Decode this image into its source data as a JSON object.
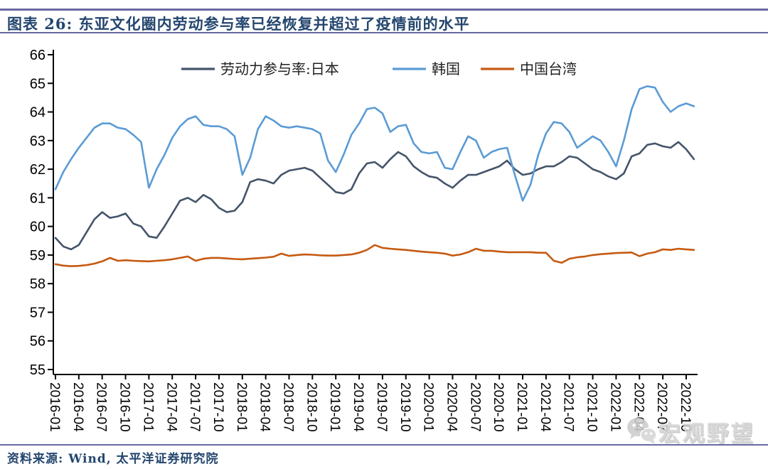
{
  "header": {
    "title": "图表 26:  东亚文化圈内劳动参与率已经恢复并超过了疫情前的水平"
  },
  "footer": {
    "source_label": "资料来源: Wind, 太平洋证券研究院"
  },
  "watermark": {
    "text": "宏观野望",
    "icon": "wechat-logo-icon"
  },
  "colors": {
    "japan_line": "#44546A",
    "korea_line": "#5B9BD5",
    "taiwan_line": "#C55A11",
    "rule": "#6869A2",
    "title_text": "#24466E",
    "axis": "#000000"
  },
  "chart_data": {
    "type": "line",
    "title": "东亚文化圈内劳动参与率已经恢复并超过了疫情前的水平",
    "xlabel": "",
    "ylabel": "",
    "ylim": [
      55,
      66
    ],
    "y_ticks": [
      55,
      56,
      57,
      58,
      59,
      60,
      61,
      62,
      63,
      64,
      65,
      66
    ],
    "grid": false,
    "legend_position": "top",
    "x_frequency": "monthly",
    "x_months": [
      "2016-01",
      "2016-02",
      "2016-03",
      "2016-04",
      "2016-05",
      "2016-06",
      "2016-07",
      "2016-08",
      "2016-09",
      "2016-10",
      "2016-11",
      "2016-12",
      "2017-01",
      "2017-02",
      "2017-03",
      "2017-04",
      "2017-05",
      "2017-06",
      "2017-07",
      "2017-08",
      "2017-09",
      "2017-10",
      "2017-11",
      "2017-12",
      "2018-01",
      "2018-02",
      "2018-03",
      "2018-04",
      "2018-05",
      "2018-06",
      "2018-07",
      "2018-08",
      "2018-09",
      "2018-10",
      "2018-11",
      "2018-12",
      "2019-01",
      "2019-02",
      "2019-03",
      "2019-04",
      "2019-05",
      "2019-06",
      "2019-07",
      "2019-08",
      "2019-09",
      "2019-10",
      "2019-11",
      "2019-12",
      "2020-01",
      "2020-02",
      "2020-03",
      "2020-04",
      "2020-05",
      "2020-06",
      "2020-07",
      "2020-08",
      "2020-09",
      "2020-10",
      "2020-11",
      "2020-12",
      "2021-01",
      "2021-02",
      "2021-03",
      "2021-04",
      "2021-05",
      "2021-06",
      "2021-07",
      "2021-08",
      "2021-09",
      "2021-10",
      "2021-11",
      "2021-12",
      "2022-01",
      "2022-02",
      "2022-03",
      "2022-04",
      "2022-05",
      "2022-06",
      "2022-07",
      "2022-08",
      "2022-09",
      "2022-10",
      "2022-11"
    ],
    "x_tick_labels": [
      "2016-01",
      "2016-04",
      "2016-07",
      "2016-10",
      "2017-01",
      "2017-04",
      "2017-07",
      "2017-10",
      "2018-01",
      "2018-04",
      "2018-07",
      "2018-10",
      "2019-01",
      "2019-04",
      "2019-07",
      "2019-10",
      "2020-01",
      "2020-04",
      "2020-07",
      "2020-10",
      "2021-01",
      "2021-04",
      "2021-07",
      "2021-10",
      "2022-01",
      "2022-04",
      "2022-07",
      "2022-10"
    ],
    "series": [
      {
        "name": "劳动力参与率:日本",
        "color": "#44546A",
        "values": [
          59.6,
          59.3,
          59.2,
          59.35,
          59.8,
          60.25,
          60.5,
          60.3,
          60.35,
          60.45,
          60.1,
          60.0,
          59.65,
          59.6,
          60.0,
          60.45,
          60.9,
          61.0,
          60.85,
          61.1,
          60.95,
          60.65,
          60.5,
          60.55,
          60.85,
          61.55,
          61.65,
          61.6,
          61.5,
          61.8,
          61.95,
          62.0,
          62.05,
          61.95,
          61.7,
          61.45,
          61.2,
          61.15,
          61.3,
          61.85,
          62.2,
          62.25,
          62.05,
          62.35,
          62.6,
          62.45,
          62.1,
          61.9,
          61.75,
          61.7,
          61.5,
          61.35,
          61.6,
          61.8,
          61.8,
          61.9,
          62.0,
          62.1,
          62.3,
          62.0,
          61.8,
          61.85,
          62.0,
          62.1,
          62.1,
          62.25,
          62.45,
          62.4,
          62.2,
          62.0,
          61.9,
          61.75,
          61.65,
          61.85,
          62.45,
          62.55,
          62.85,
          62.9,
          62.8,
          62.75,
          62.95,
          62.7,
          62.35
        ]
      },
      {
        "name": "韩国",
        "color": "#5B9BD5",
        "values": [
          61.3,
          61.9,
          62.35,
          62.75,
          63.1,
          63.45,
          63.6,
          63.6,
          63.45,
          63.4,
          63.2,
          62.95,
          61.35,
          62.0,
          62.5,
          63.1,
          63.5,
          63.75,
          63.85,
          63.55,
          63.5,
          63.5,
          63.4,
          63.15,
          61.8,
          62.4,
          63.4,
          63.85,
          63.7,
          63.5,
          63.45,
          63.5,
          63.45,
          63.4,
          63.25,
          62.3,
          61.9,
          62.5,
          63.2,
          63.6,
          64.1,
          64.15,
          63.95,
          63.3,
          63.5,
          63.55,
          62.9,
          62.6,
          62.55,
          62.6,
          62.05,
          62.0,
          62.6,
          63.15,
          63.0,
          62.4,
          62.6,
          62.7,
          62.75,
          61.8,
          60.9,
          61.45,
          62.5,
          63.25,
          63.65,
          63.6,
          63.3,
          62.75,
          62.95,
          63.15,
          63.0,
          62.6,
          62.1,
          63.0,
          64.1,
          64.8,
          64.9,
          64.85,
          64.35,
          64.0,
          64.2,
          64.3,
          64.2
        ]
      },
      {
        "name": "中国台湾",
        "color": "#C55A11",
        "values": [
          58.68,
          58.63,
          58.61,
          58.62,
          58.65,
          58.7,
          58.78,
          58.9,
          58.8,
          58.82,
          58.8,
          58.79,
          58.78,
          58.8,
          58.82,
          58.85,
          58.9,
          58.95,
          58.8,
          58.87,
          58.9,
          58.9,
          58.88,
          58.86,
          58.85,
          58.87,
          58.89,
          58.91,
          58.94,
          59.05,
          58.97,
          59.0,
          59.02,
          59.01,
          58.99,
          58.98,
          58.98,
          59.0,
          59.02,
          59.08,
          59.18,
          59.35,
          59.25,
          59.22,
          59.2,
          59.18,
          59.15,
          59.12,
          59.1,
          59.08,
          59.05,
          58.98,
          59.02,
          59.1,
          59.22,
          59.15,
          59.15,
          59.12,
          59.1,
          59.1,
          59.1,
          59.1,
          59.08,
          59.08,
          58.8,
          58.73,
          58.87,
          58.92,
          58.95,
          59.0,
          59.03,
          59.05,
          59.07,
          59.08,
          59.09,
          58.96,
          59.05,
          59.1,
          59.2,
          59.18,
          59.22,
          59.2,
          59.18
        ]
      }
    ]
  }
}
